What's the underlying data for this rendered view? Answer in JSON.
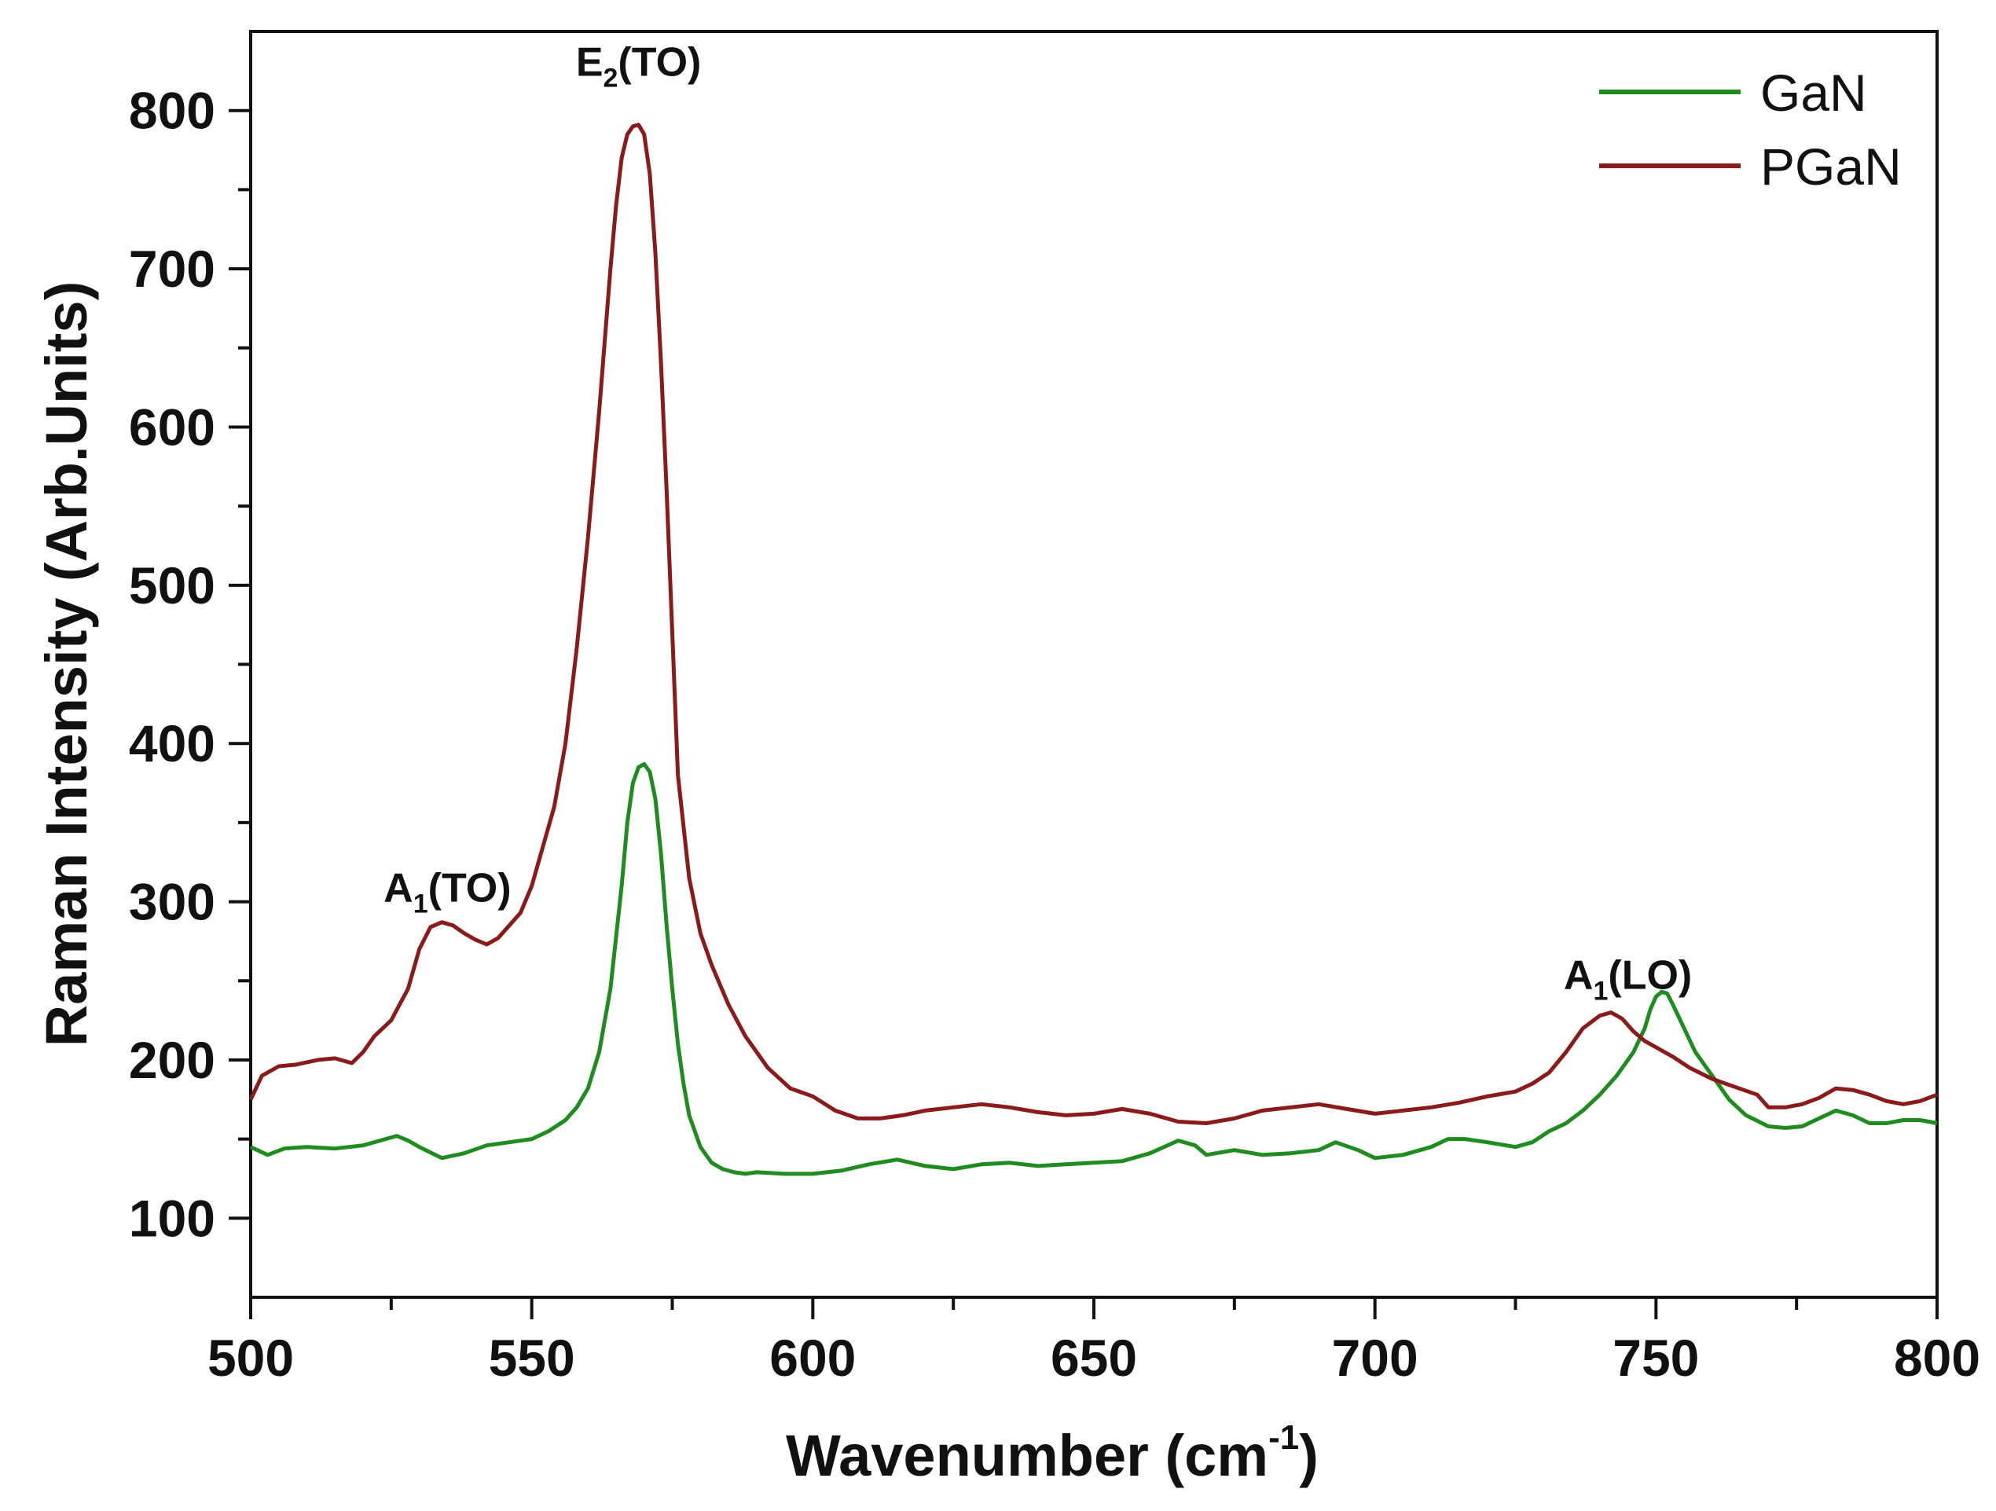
{
  "chart_data": {
    "type": "line",
    "xlabel": "Wavenumber (cm",
    "xlabel_sup": "-1",
    "xlabel_close": ")",
    "ylabel": "Raman Intensity (Arb.Units)",
    "xlim": [
      500,
      800
    ],
    "ylim": [
      50,
      850
    ],
    "grid": false,
    "legend_position": "top-right",
    "xticks": [
      "500",
      "550",
      "600",
      "650",
      "700",
      "750",
      "800"
    ],
    "yticks": [
      "100",
      "200",
      "300",
      "400",
      "500",
      "600",
      "700",
      "800"
    ],
    "annotations": [
      {
        "base": "E",
        "sub": "2",
        "rest": "(TO)",
        "x": 569,
        "y": 822
      },
      {
        "base": "A",
        "sub": "1",
        "rest": "(TO)",
        "x": 535,
        "y": 300
      },
      {
        "base": "A",
        "sub": "1",
        "rest": "(LO)",
        "x": 745,
        "y": 245
      }
    ],
    "series": [
      {
        "name": "GaN",
        "color": "#1e8c1e",
        "x": [
          500,
          503,
          506,
          510,
          515,
          520,
          524,
          526,
          528,
          530,
          534,
          538,
          542,
          546,
          550,
          553,
          556,
          558,
          560,
          562,
          564,
          566,
          567,
          568,
          569,
          570,
          571,
          572,
          573,
          574,
          575,
          576,
          577,
          578,
          580,
          582,
          584,
          586,
          588,
          590,
          595,
          600,
          605,
          610,
          615,
          620,
          625,
          630,
          635,
          640,
          645,
          650,
          655,
          660,
          665,
          668,
          670,
          675,
          680,
          685,
          690,
          693,
          697,
          700,
          705,
          710,
          713,
          716,
          720,
          725,
          728,
          731,
          734,
          737,
          740,
          743,
          746,
          748,
          749,
          750,
          751,
          752,
          753,
          755,
          757,
          760,
          763,
          766,
          770,
          773,
          776,
          779,
          782,
          785,
          788,
          791,
          794,
          797,
          800
        ],
        "y": [
          145,
          140,
          144,
          145,
          144,
          146,
          150,
          152,
          149,
          145,
          138,
          141,
          146,
          148,
          150,
          155,
          162,
          170,
          182,
          205,
          245,
          310,
          350,
          375,
          385,
          387,
          382,
          365,
          330,
          285,
          245,
          210,
          185,
          165,
          145,
          135,
          131,
          129,
          128,
          129,
          128,
          128,
          130,
          134,
          137,
          133,
          131,
          134,
          135,
          133,
          134,
          135,
          136,
          141,
          149,
          146,
          140,
          143,
          140,
          141,
          143,
          148,
          143,
          138,
          140,
          145,
          150,
          150,
          148,
          145,
          148,
          155,
          160,
          168,
          178,
          190,
          205,
          220,
          232,
          240,
          243,
          242,
          235,
          220,
          205,
          190,
          175,
          165,
          158,
          157,
          158,
          163,
          168,
          165,
          160,
          160,
          162,
          162,
          160
        ]
      },
      {
        "name": "PGaN",
        "color": "#8b1a1a",
        "x": [
          500,
          502,
          505,
          508,
          512,
          515,
          518,
          520,
          522,
          525,
          528,
          530,
          532,
          534,
          536,
          538,
          540,
          542,
          544,
          546,
          548,
          550,
          552,
          554,
          556,
          558,
          560,
          562,
          564,
          565,
          566,
          567,
          568,
          569,
          570,
          571,
          572,
          573,
          574,
          575,
          576,
          578,
          580,
          582,
          585,
          588,
          592,
          596,
          600,
          604,
          608,
          612,
          616,
          620,
          625,
          630,
          635,
          640,
          645,
          650,
          655,
          660,
          665,
          670,
          675,
          680,
          685,
          690,
          695,
          700,
          705,
          710,
          715,
          720,
          725,
          728,
          731,
          734,
          737,
          740,
          742,
          744,
          746,
          748,
          750,
          753,
          756,
          760,
          764,
          768,
          770,
          773,
          776,
          779,
          782,
          785,
          788,
          791,
          794,
          797,
          800
        ],
        "y": [
          175,
          190,
          196,
          197,
          200,
          201,
          198,
          205,
          215,
          225,
          245,
          270,
          284,
          287,
          285,
          280,
          276,
          273,
          277,
          285,
          293,
          310,
          335,
          360,
          400,
          460,
          530,
          610,
          700,
          740,
          770,
          785,
          790,
          791,
          785,
          760,
          710,
          640,
          560,
          470,
          380,
          315,
          280,
          260,
          235,
          215,
          195,
          182,
          177,
          168,
          163,
          163,
          165,
          168,
          170,
          172,
          170,
          167,
          165,
          166,
          169,
          166,
          161,
          160,
          163,
          168,
          170,
          172,
          169,
          166,
          168,
          170,
          173,
          177,
          180,
          185,
          192,
          205,
          220,
          228,
          230,
          226,
          218,
          212,
          208,
          202,
          195,
          188,
          183,
          178,
          170,
          170,
          172,
          176,
          182,
          181,
          178,
          174,
          172,
          174,
          178
        ]
      }
    ]
  }
}
